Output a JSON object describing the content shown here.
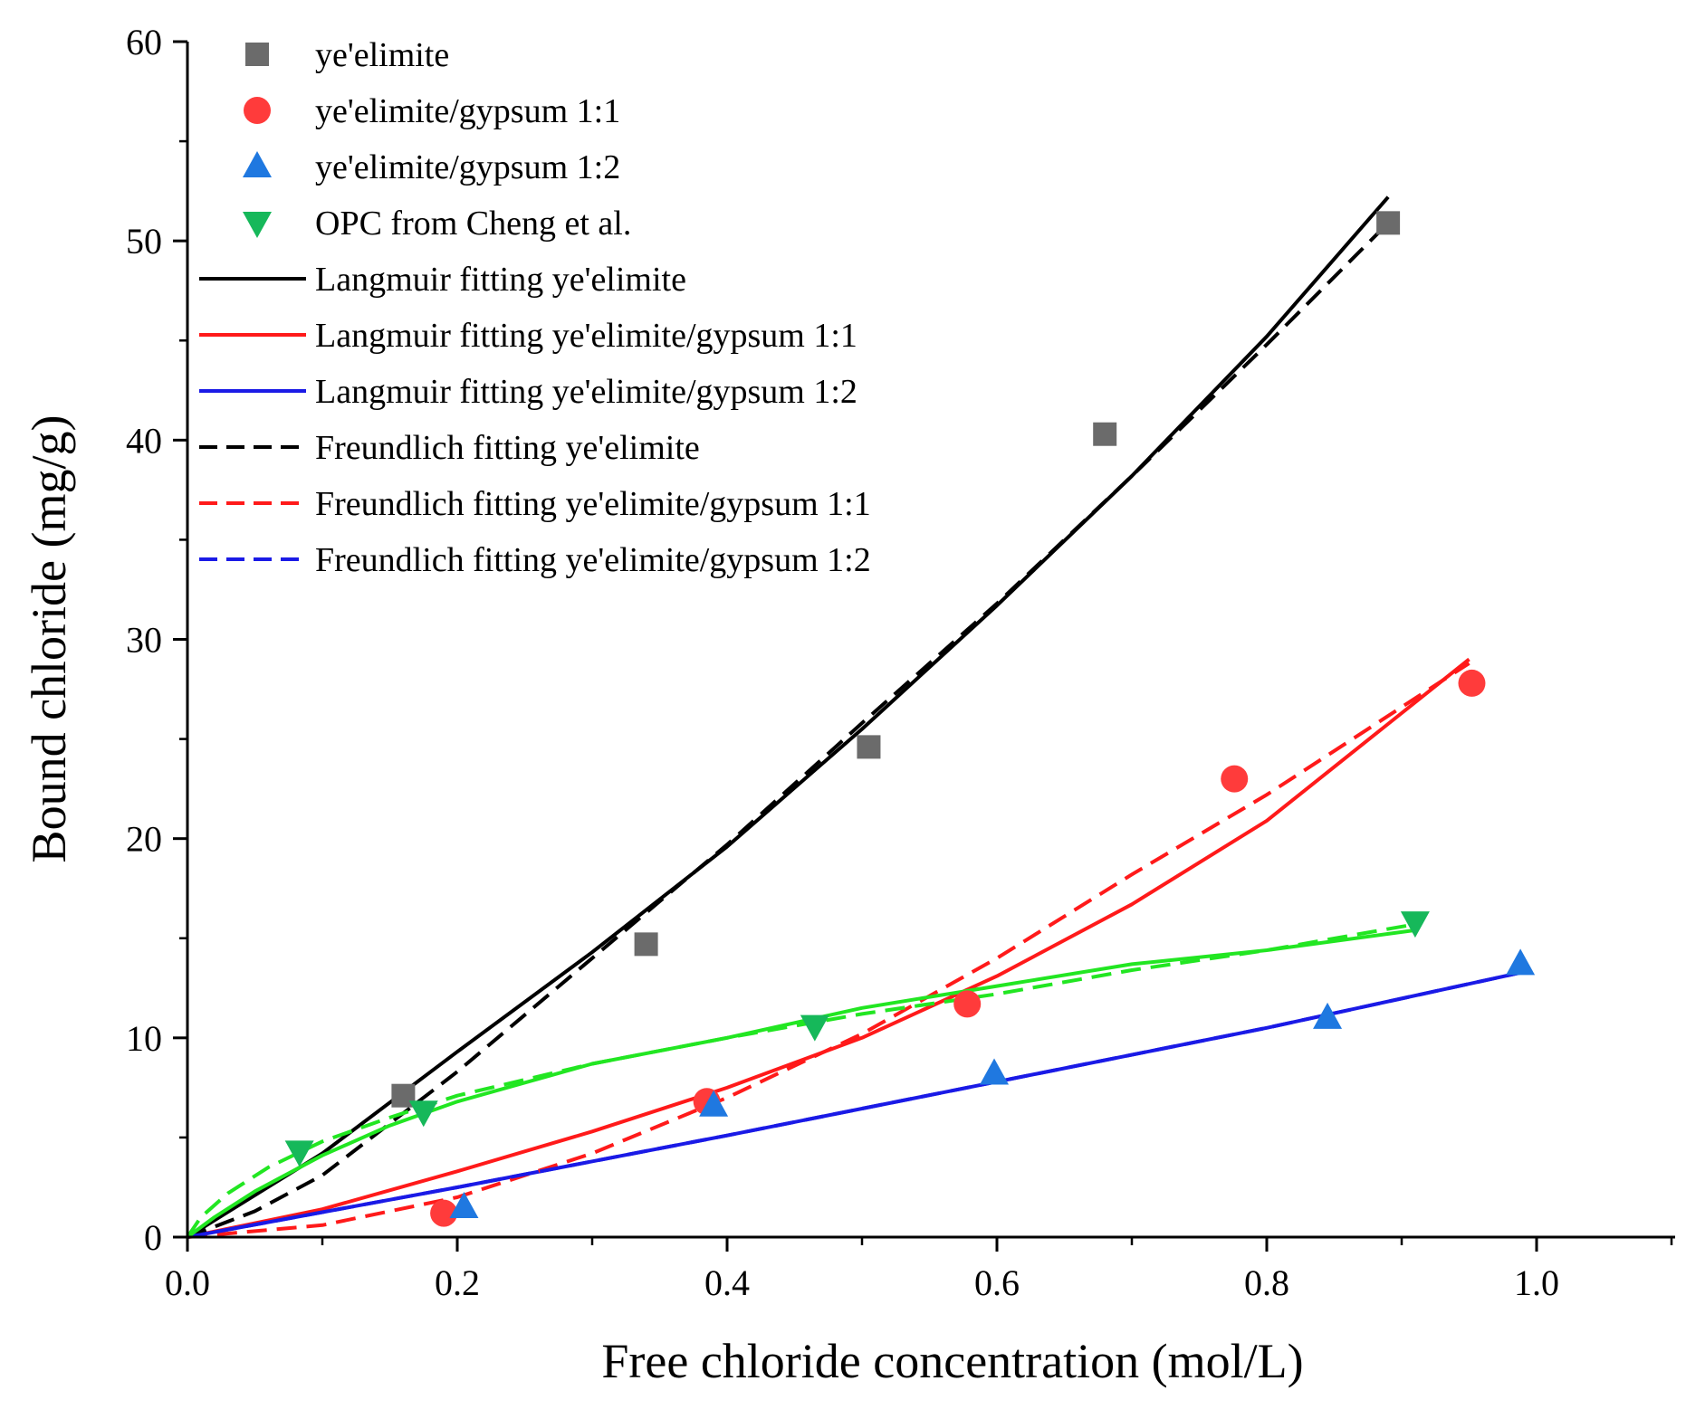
{
  "chart_data": {
    "type": "scatter",
    "xlabel": "Free chloride concentration (mol/L)",
    "ylabel": "Bound chloride (mg/g)",
    "xlim": [
      0,
      1.1
    ],
    "ylim": [
      0,
      60
    ],
    "xticks": [
      0.0,
      0.2,
      0.4,
      0.6,
      0.8,
      1.0
    ],
    "xtick_labels": [
      "0.0",
      "0.2",
      "0.4",
      "0.6",
      "0.8",
      "1.0"
    ],
    "yticks": [
      0,
      10,
      20,
      30,
      40,
      50,
      60
    ],
    "ytick_labels": [
      "0",
      "10",
      "20",
      "30",
      "40",
      "50",
      "60"
    ],
    "legend_position": "top-left",
    "series": [
      {
        "name": "ye'elimite",
        "kind": "points",
        "marker": "square",
        "color": "#6b6b6b",
        "x": [
          0.16,
          0.34,
          0.505,
          0.68,
          0.89
        ],
        "y": [
          7.1,
          14.7,
          24.6,
          40.3,
          50.9
        ]
      },
      {
        "name": "ye'elimite/gypsum 1:1",
        "kind": "points",
        "marker": "circle",
        "color": "#ff3b3b",
        "x": [
          0.19,
          0.385,
          0.578,
          0.776,
          0.952
        ],
        "y": [
          1.2,
          6.8,
          11.7,
          23.0,
          27.8
        ]
      },
      {
        "name": "ye'elimite/gypsum 1:2",
        "kind": "points",
        "marker": "triangle-up",
        "color": "#1f78e0",
        "x": [
          0.205,
          0.39,
          0.598,
          0.845,
          0.988
        ],
        "y": [
          1.5,
          6.6,
          8.2,
          11.0,
          13.7
        ]
      },
      {
        "name": "OPC from Cheng et al.",
        "kind": "points",
        "marker": "triangle-down",
        "color": "#16b85a",
        "x": [
          0.083,
          0.175,
          0.465,
          0.91
        ],
        "y": [
          4.3,
          6.3,
          10.6,
          15.8
        ]
      },
      {
        "name": "Langmuir fitting  ye'elimite",
        "kind": "line",
        "dash": "solid",
        "color": "#000000",
        "x": [
          0.0,
          0.1,
          0.2,
          0.3,
          0.4,
          0.5,
          0.6,
          0.7,
          0.8,
          0.89
        ],
        "y": [
          0.0,
          4.2,
          9.3,
          14.3,
          19.6,
          25.5,
          31.7,
          38.2,
          45.2,
          52.2
        ]
      },
      {
        "name": "Langmuir fitting  ye'elimite/gypsum 1:1",
        "kind": "line",
        "dash": "solid",
        "color": "#ff1a1a",
        "x": [
          0.0,
          0.1,
          0.2,
          0.3,
          0.4,
          0.5,
          0.6,
          0.7,
          0.8,
          0.95
        ],
        "y": [
          0.0,
          1.4,
          3.3,
          5.3,
          7.5,
          10.0,
          13.1,
          16.7,
          20.9,
          29.0
        ]
      },
      {
        "name": "Langmuir fitting  ye'elimite/gypsum 1:2",
        "kind": "line",
        "dash": "solid",
        "color": "#1a1ae6",
        "x": [
          0.0,
          0.2,
          0.4,
          0.6,
          0.8,
          0.99
        ],
        "y": [
          0.0,
          2.5,
          5.1,
          7.8,
          10.5,
          13.3
        ]
      },
      {
        "name": "Freundlich fitting  ye'elimite",
        "kind": "line",
        "dash": "dashed",
        "color": "#000000",
        "x": [
          0.0,
          0.05,
          0.1,
          0.2,
          0.3,
          0.4,
          0.5,
          0.6,
          0.7,
          0.8,
          0.89
        ],
        "y": [
          0.0,
          1.3,
          3.1,
          8.3,
          14.0,
          19.7,
          25.8,
          31.8,
          38.2,
          44.8,
          50.9
        ]
      },
      {
        "name": "Freundlich fitting  ye'elimite/gypsum 1:1",
        "kind": "line",
        "dash": "dashed",
        "color": "#ff1a1a",
        "x": [
          0.0,
          0.1,
          0.2,
          0.3,
          0.4,
          0.5,
          0.6,
          0.7,
          0.8,
          0.95
        ],
        "y": [
          0.0,
          0.6,
          2.0,
          4.2,
          7.0,
          10.2,
          14.0,
          18.2,
          22.2,
          28.8
        ]
      },
      {
        "name": "Freundlich fitting  ye'elimite/gypsum 1:2",
        "kind": "line",
        "dash": "dashed",
        "color": "#1a1ae6",
        "x": [
          0.0,
          0.2,
          0.4,
          0.6,
          0.8,
          0.99
        ],
        "y": [
          0.0,
          2.5,
          5.1,
          7.8,
          10.5,
          13.3
        ]
      },
      {
        "name": "Langmuir fitting OPC",
        "kind": "line",
        "dash": "solid",
        "color": "#22e622",
        "in_legend": false,
        "x": [
          0.0,
          0.02,
          0.05,
          0.1,
          0.15,
          0.2,
          0.3,
          0.4,
          0.5,
          0.6,
          0.7,
          0.8,
          0.91
        ],
        "y": [
          0.0,
          1.0,
          2.3,
          4.1,
          5.6,
          6.8,
          8.7,
          10.0,
          11.5,
          12.6,
          13.7,
          14.4,
          15.4
        ]
      },
      {
        "name": "Freundlich fitting OPC",
        "kind": "line",
        "dash": "dashed",
        "color": "#22e622",
        "in_legend": false,
        "x": [
          0.0,
          0.01,
          0.03,
          0.06,
          0.1,
          0.15,
          0.2,
          0.3,
          0.4,
          0.5,
          0.6,
          0.7,
          0.8,
          0.91
        ],
        "y": [
          0.0,
          1.0,
          2.2,
          3.5,
          4.8,
          6.0,
          7.1,
          8.7,
          10.0,
          11.2,
          12.2,
          13.4,
          14.4,
          15.7
        ]
      }
    ]
  }
}
